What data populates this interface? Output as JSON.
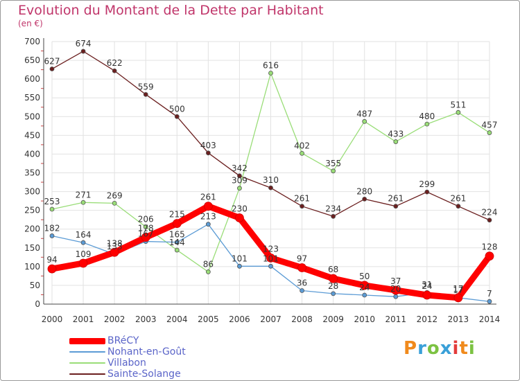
{
  "chart_data": {
    "type": "line",
    "title": "Evolution du Montant de la Dette par Habitant",
    "subtitle": "(en €)",
    "x": [
      "2000",
      "2001",
      "2002",
      "2003",
      "2004",
      "2005",
      "2006",
      "2007",
      "2008",
      "2009",
      "2010",
      "2011",
      "2012",
      "2013",
      "2014"
    ],
    "yticks": [
      "0",
      "50",
      "100",
      "150",
      "200",
      "250",
      "300",
      "350",
      "400",
      "450",
      "500",
      "550",
      "600",
      "650",
      "700"
    ],
    "ylim": [
      0,
      700
    ],
    "grid": true,
    "legend_position": "bottom-left",
    "series": [
      {
        "name": "Sainte-Solange",
        "color": "#6b1f1f",
        "values": [
          627,
          674,
          622,
          559,
          500,
          403,
          342,
          310,
          261,
          234,
          280,
          261,
          299,
          261,
          224
        ]
      },
      {
        "name": "Villabon",
        "color": "#99dd77",
        "values": [
          253,
          271,
          269,
          206,
          144,
          86,
          309,
          616,
          402,
          355,
          487,
          433,
          480,
          511,
          457
        ]
      },
      {
        "name": "Nohant-en-Goût",
        "color": "#5b9bd5",
        "values": [
          182,
          164,
          133,
          167,
          165,
          213,
          101,
          101,
          36,
          28,
          24,
          20,
          31,
          17,
          7
        ]
      },
      {
        "name": "BRéCY",
        "color": "#ff0000",
        "values": [
          94,
          109,
          138,
          178,
          215,
          261,
          230,
          123,
          97,
          68,
          50,
          37,
          24,
          17,
          128
        ]
      }
    ]
  },
  "legend": {
    "items": [
      {
        "label": "BRéCY",
        "color": "#ff0000"
      },
      {
        "label": "Nohant-en-Goût",
        "color": "#5b9bd5"
      },
      {
        "label": "Villabon",
        "color": "#99dd77"
      },
      {
        "label": "Sainte-Solange",
        "color": "#6b1f1f"
      }
    ]
  },
  "logo": {
    "text": "Proxiti"
  }
}
